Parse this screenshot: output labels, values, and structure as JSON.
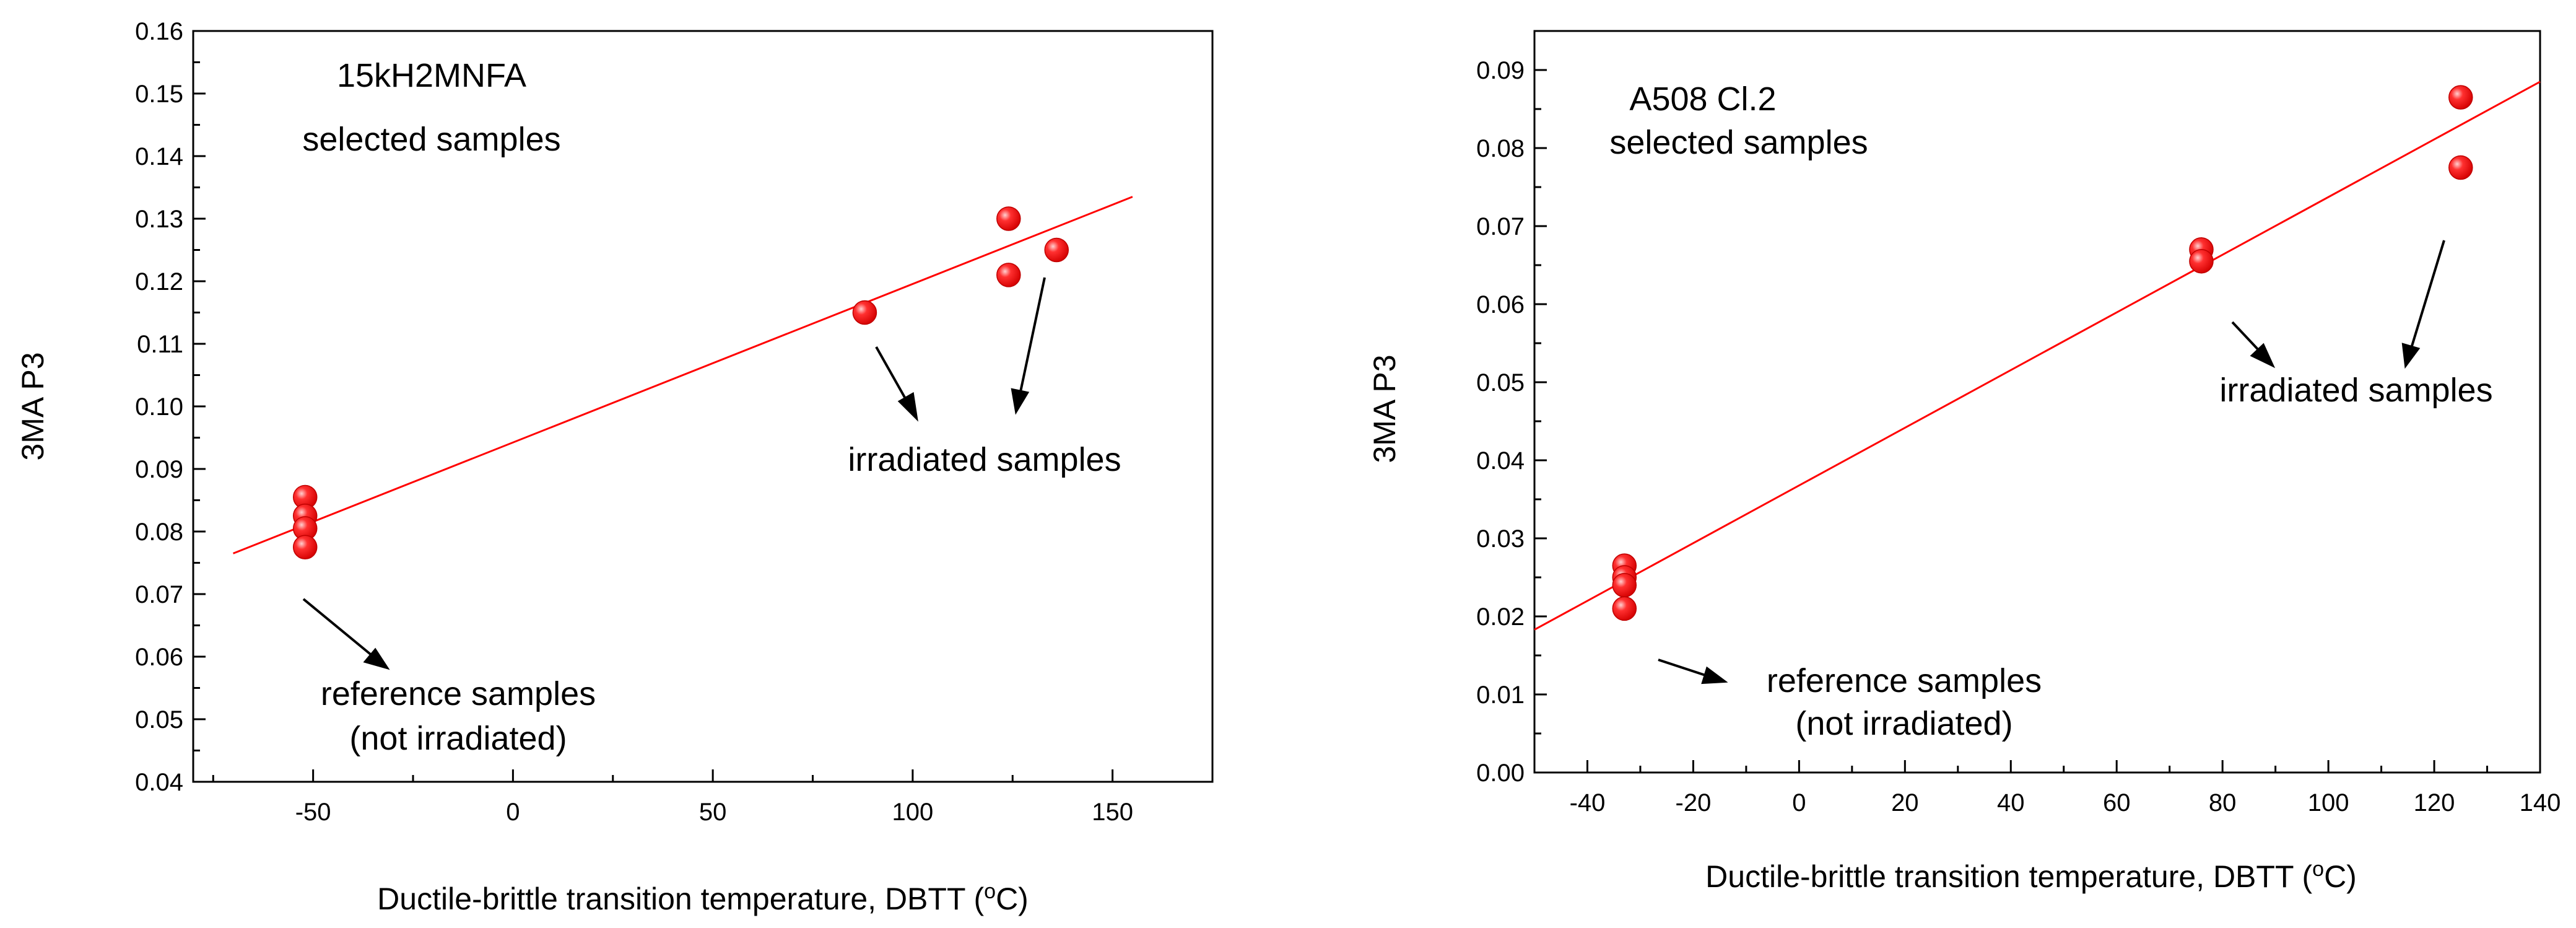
{
  "chart_data": [
    {
      "type": "scatter",
      "title": "15kH2MNFA selected samples",
      "title_lines": [
        "15kH2MNFA",
        "selected samples"
      ],
      "xlabel": "Ductile-brittle transition temperature, DBTT (",
      "xlabel_unit": "C)",
      "xlabel_degree": "o",
      "ylabel": "3MA  P3",
      "xlim": [
        -80,
        175
      ],
      "ylim": [
        0.04,
        0.16
      ],
      "x_ticks": [
        -50,
        0,
        50,
        100,
        150
      ],
      "x_tick_labels": [
        "-50",
        "0",
        "50",
        "100",
        "150"
      ],
      "y_ticks": [
        0.04,
        0.05,
        0.06,
        0.07,
        0.08,
        0.09,
        0.1,
        0.11,
        0.12,
        0.13,
        0.14,
        0.15,
        0.16
      ],
      "y_tick_labels": [
        "0.04",
        "0.05",
        "0.06",
        "0.07",
        "0.08",
        "0.09",
        "0.10",
        "0.11",
        "0.12",
        "0.13",
        "0.14",
        "0.15",
        "0.16"
      ],
      "series": [
        {
          "name": "reference samples",
          "x": [
            -52,
            -52,
            -52,
            -52
          ],
          "y": [
            0.0855,
            0.0825,
            0.0805,
            0.0775
          ]
        },
        {
          "name": "irradiated samples",
          "x": [
            88,
            124,
            124,
            136
          ],
          "y": [
            0.115,
            0.13,
            0.121,
            0.125
          ]
        }
      ],
      "fit_line": {
        "x": [
          -70,
          155
        ],
        "y": [
          0.0765,
          0.1335
        ]
      },
      "marker_color": "#ff1a1a",
      "line_color": "#ff0000",
      "annotations": [
        {
          "lines": [
            "irradiated samples"
          ]
        },
        {
          "lines": [
            "reference samples",
            "(not irradiated)"
          ]
        }
      ]
    },
    {
      "type": "scatter",
      "title": "A508 Cl.2 selected samples",
      "title_lines": [
        "A508 Cl.2",
        "selected samples"
      ],
      "xlabel": "Ductile-brittle transition temperature, DBTT (",
      "xlabel_unit": "C)",
      "xlabel_degree": "o",
      "ylabel": "3MA  P3",
      "xlim": [
        -50,
        140
      ],
      "ylim": [
        0.0,
        0.095
      ],
      "x_ticks": [
        -40,
        -20,
        0,
        20,
        40,
        60,
        80,
        100,
        120,
        140
      ],
      "x_tick_labels": [
        "-40",
        "-20",
        "0",
        "20",
        "40",
        "60",
        "80",
        "100",
        "120",
        "140"
      ],
      "y_ticks": [
        0.0,
        0.01,
        0.02,
        0.03,
        0.04,
        0.05,
        0.06,
        0.07,
        0.08,
        0.09
      ],
      "y_tick_labels": [
        "0.00",
        "0.01",
        "0.02",
        "0.03",
        "0.04",
        "0.05",
        "0.06",
        "0.07",
        "0.08",
        "0.09"
      ],
      "series": [
        {
          "name": "reference samples",
          "x": [
            -33,
            -33,
            -33,
            -33
          ],
          "y": [
            0.0265,
            0.025,
            0.024,
            0.021
          ]
        },
        {
          "name": "irradiated samples",
          "x": [
            76,
            76,
            125,
            125
          ],
          "y": [
            0.067,
            0.0655,
            0.0865,
            0.0775
          ]
        }
      ],
      "fit_line": {
        "x": [
          -50,
          140
        ],
        "y": [
          0.0183,
          0.0885
        ]
      },
      "marker_color": "#ff1a1a",
      "line_color": "#ff0000",
      "annotations": [
        {
          "lines": [
            "irradiated samples"
          ]
        },
        {
          "lines": [
            "reference samples",
            "(not irradiated)"
          ]
        }
      ]
    }
  ]
}
